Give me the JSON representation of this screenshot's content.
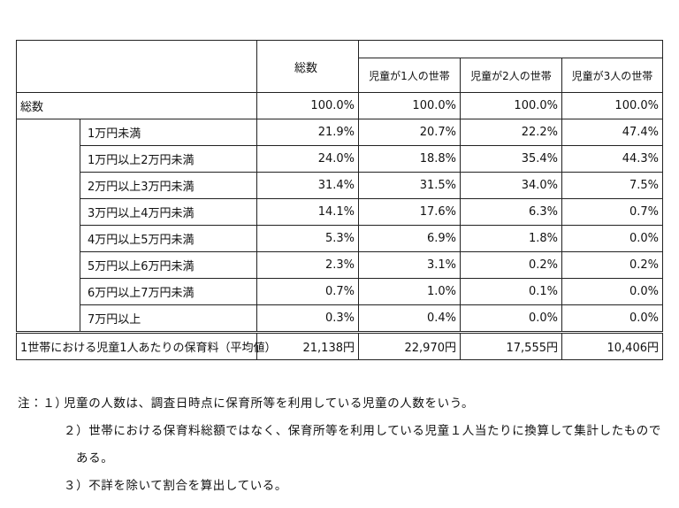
{
  "header": {
    "columns": [
      "総数",
      "児童が1人の世帯",
      "児童が2人の世帯",
      "児童が3人の世帯"
    ]
  },
  "table": {
    "total_row": {
      "label": "総数",
      "values": [
        "100.0%",
        "100.0%",
        "100.0%",
        "100.0%"
      ]
    },
    "rows": [
      {
        "label": "1万円未満",
        "values": [
          "21.9%",
          "20.7%",
          "22.2%",
          "47.4%"
        ]
      },
      {
        "label": "1万円以上2万円未満",
        "values": [
          "24.0%",
          "18.8%",
          "35.4%",
          "44.3%"
        ]
      },
      {
        "label": "2万円以上3万円未満",
        "values": [
          "31.4%",
          "31.5%",
          "34.0%",
          "7.5%"
        ]
      },
      {
        "label": "3万円以上4万円未満",
        "values": [
          "14.1%",
          "17.6%",
          "6.3%",
          "0.7%"
        ]
      },
      {
        "label": "4万円以上5万円未満",
        "values": [
          "5.3%",
          "6.9%",
          "1.8%",
          "0.0%"
        ]
      },
      {
        "label": "5万円以上6万円未満",
        "values": [
          "2.3%",
          "3.1%",
          "0.2%",
          "0.2%"
        ]
      },
      {
        "label": "6万円以上7万円未満",
        "values": [
          "0.7%",
          "1.0%",
          "0.1%",
          "0.0%"
        ]
      },
      {
        "label": "7万円以上",
        "values": [
          "0.3%",
          "0.4%",
          "0.0%",
          "0.0%"
        ]
      }
    ],
    "footer_row": {
      "label": "1世帯における児童1人あたりの保育料（平均値）",
      "values": [
        "21,138円",
        "22,970円",
        "17,555円",
        "10,406円"
      ]
    }
  },
  "notes": [
    {
      "marker": "注：１）",
      "text": "児童の人数は、調査日時点に保育所等を利用している児童の人数をいう。"
    },
    {
      "marker": "２）",
      "text": "世帯における保育料総額ではなく、保育所等を利用している児童１人当たりに換算して集計したものである。"
    },
    {
      "marker": "３）",
      "text": "不詳を除いて割合を算出している。"
    }
  ]
}
